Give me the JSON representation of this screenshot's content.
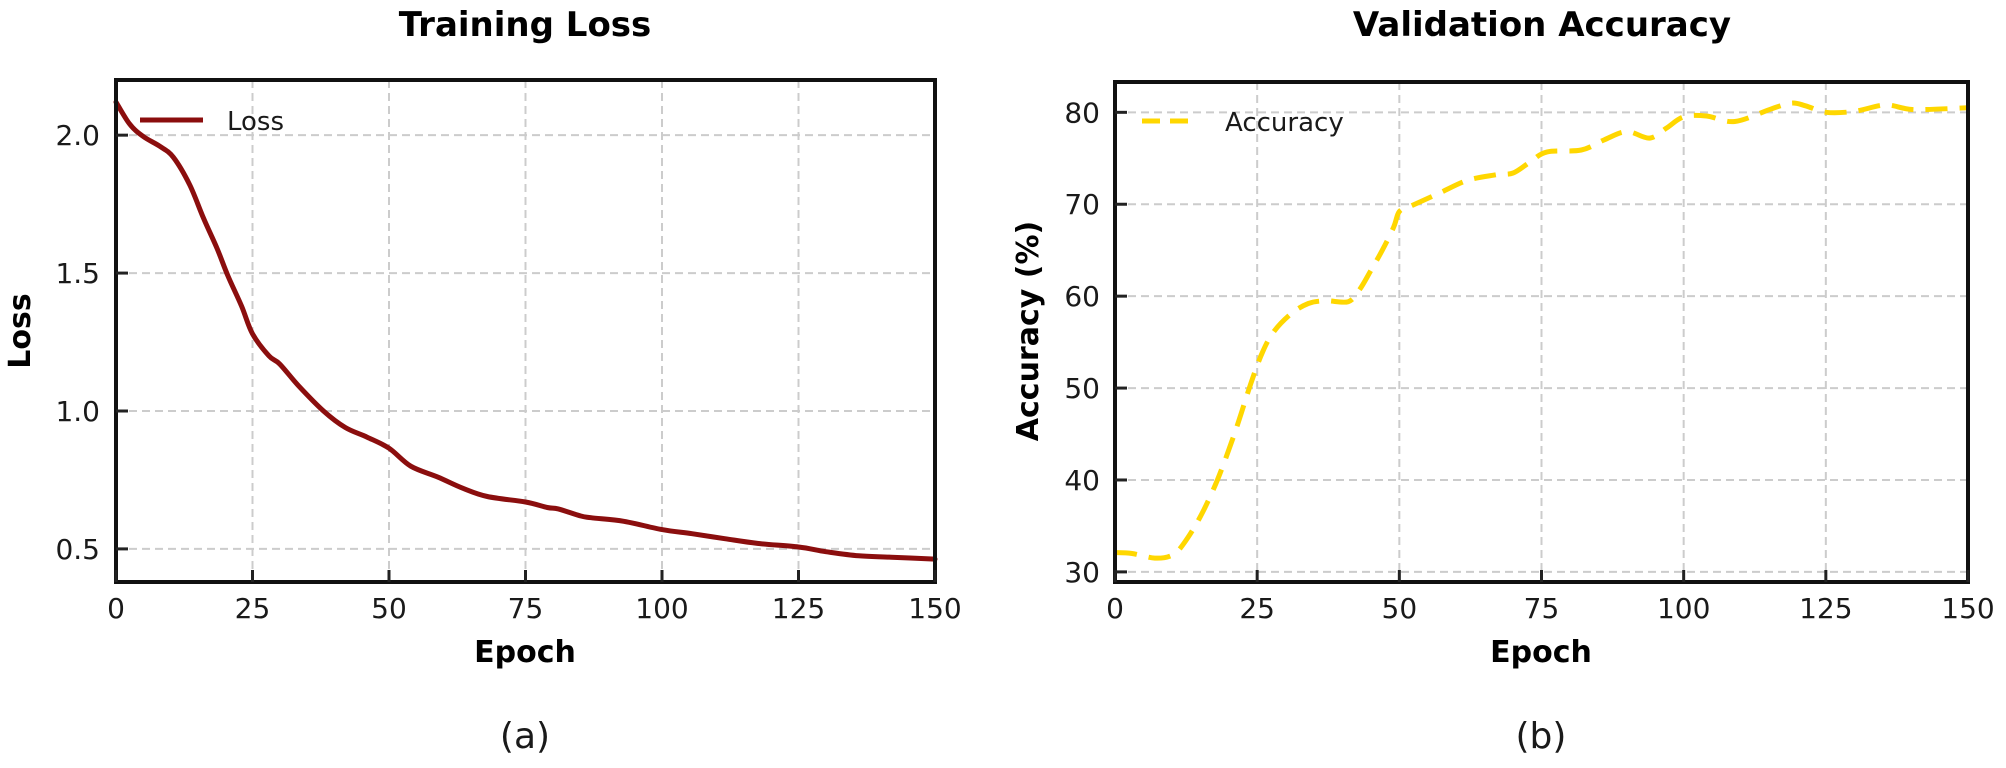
{
  "chart_data": [
    {
      "type": "line",
      "panel_label": "(a)",
      "title": "Training Loss",
      "xlabel": "Epoch",
      "ylabel": "Loss",
      "xlim": [
        0,
        150
      ],
      "ylim": [
        0.38,
        2.2
      ],
      "xticks": [
        0,
        25,
        50,
        75,
        100,
        125,
        150
      ],
      "yticks": [
        0.5,
        1.0,
        1.5,
        2.0
      ],
      "ytick_labels": [
        "0.5",
        "1.0",
        "1.5",
        "2.0"
      ],
      "grid": true,
      "legend_position": "upper left",
      "series": [
        {
          "name": "Loss",
          "color": "#8b0e0e",
          "linestyle": "solid",
          "x": [
            0,
            2.5,
            5,
            8,
            10.5,
            13.5,
            16,
            18.5,
            20.5,
            23,
            25,
            28,
            30,
            33.5,
            38,
            42,
            46,
            50,
            54,
            59,
            63.5,
            68,
            75,
            79,
            81,
            85,
            87,
            93,
            100,
            105.5,
            111.5,
            117.5,
            125,
            130,
            136,
            142,
            150
          ],
          "y": [
            2.12,
            2.04,
            1.995,
            1.96,
            1.92,
            1.82,
            1.7,
            1.59,
            1.49,
            1.38,
            1.28,
            1.2,
            1.17,
            1.09,
            1.0,
            0.94,
            0.905,
            0.865,
            0.8,
            0.76,
            0.72,
            0.69,
            0.67,
            0.65,
            0.645,
            0.62,
            0.613,
            0.6,
            0.57,
            0.555,
            0.537,
            0.52,
            0.507,
            0.49,
            0.475,
            0.47,
            0.463
          ]
        }
      ]
    },
    {
      "type": "line",
      "panel_label": "(b)",
      "title": "Validation Accuracy",
      "xlabel": "Epoch",
      "ylabel": "Accuracy (%)",
      "xlim": [
        0,
        150
      ],
      "ylim": [
        28.9,
        83.3
      ],
      "xticks": [
        0,
        25,
        50,
        75,
        100,
        125,
        150
      ],
      "yticks": [
        30,
        40,
        50,
        60,
        70,
        80
      ],
      "ytick_labels": [
        "30",
        "40",
        "50",
        "60",
        "70",
        "80"
      ],
      "grid": true,
      "legend_position": "upper left",
      "series": [
        {
          "name": "Accuracy",
          "color": "#ffd700",
          "linestyle": "dashed",
          "x": [
            0,
            3,
            7,
            10,
            12,
            15,
            18,
            21,
            24,
            26,
            28,
            31,
            34,
            37,
            41,
            43,
            45,
            47,
            49,
            50,
            52,
            57,
            62,
            67,
            70,
            73,
            76,
            82,
            86,
            90,
            94,
            97,
            100,
            104,
            109,
            115.5,
            119,
            121.5,
            125,
            130,
            135.5,
            140.5,
            150
          ],
          "y": [
            32.1,
            32.0,
            31.5,
            31.8,
            33.0,
            36.0,
            40.0,
            45.0,
            50.7,
            54.0,
            56.2,
            58.1,
            59.2,
            59.5,
            59.4,
            60.7,
            62.8,
            65.0,
            67.5,
            69.2,
            69.8,
            71.2,
            72.6,
            73.2,
            73.4,
            74.6,
            75.7,
            75.9,
            77.0,
            77.9,
            77.2,
            78.3,
            79.5,
            79.6,
            79.0,
            80.4,
            81.0,
            80.7,
            80.0,
            80.1,
            80.8,
            80.3,
            80.5
          ]
        }
      ]
    }
  ]
}
